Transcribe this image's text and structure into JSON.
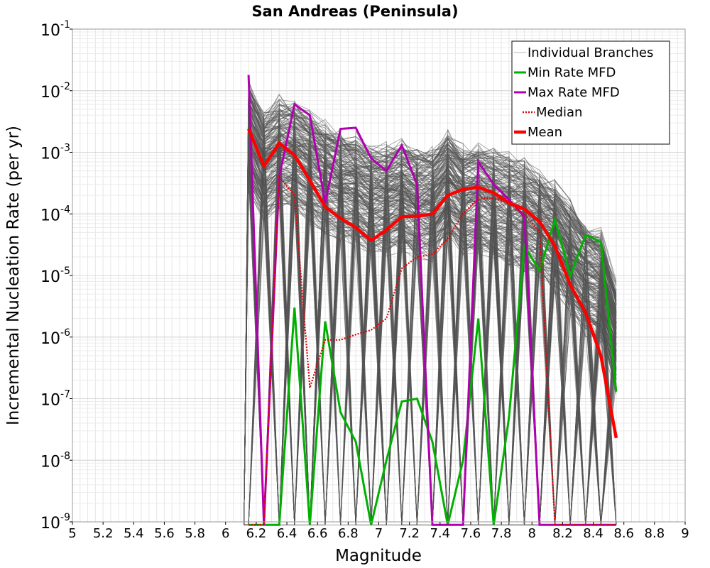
{
  "chart_data": {
    "type": "line",
    "title": "San Andreas (Peninsula)",
    "xlabel": "Magnitude",
    "ylabel": "Incremental Nucleation Rate (per yr)",
    "x_scale": "linear",
    "y_scale": "log",
    "xlim": [
      5,
      9
    ],
    "ylim": [
      1e-09,
      0.1
    ],
    "x_ticks": [
      5,
      5.2,
      5.4,
      5.6,
      5.8,
      6,
      6.2,
      6.4,
      6.6,
      6.8,
      7,
      7.2,
      7.4,
      7.6,
      7.8,
      8,
      8.2,
      8.4,
      8.6,
      8.8,
      9
    ],
    "x_tick_labels": [
      "5",
      "5.2",
      "5.4",
      "5.6",
      "5.8",
      "6",
      "6.2",
      "6.4",
      "6.6",
      "6.8",
      "7",
      "7.2",
      "7.4",
      "7.6",
      "7.8",
      "8",
      "8.2",
      "8.4",
      "8.6",
      "8.8",
      "9"
    ],
    "y_tick_labels": [
      {
        "base": "10",
        "exp": "-9"
      },
      {
        "base": "10",
        "exp": "-8"
      },
      {
        "base": "10",
        "exp": "-7"
      },
      {
        "base": "10",
        "exp": "-6"
      },
      {
        "base": "10",
        "exp": "-5"
      },
      {
        "base": "10",
        "exp": "-4"
      },
      {
        "base": "10",
        "exp": "-3"
      },
      {
        "base": "10",
        "exp": "-2"
      },
      {
        "base": "10",
        "exp": "-1"
      }
    ],
    "legend": {
      "position": "top-right",
      "entries": [
        {
          "label": "Individual Branches",
          "color": "#b4b4b4",
          "style": "thin-solid"
        },
        {
          "label": "Min Rate MFD",
          "color": "#00b000",
          "style": "solid"
        },
        {
          "label": "Max Rate MFD",
          "color": "#b000b0",
          "style": "solid"
        },
        {
          "label": "Median",
          "color": "#e00000",
          "style": "dotted"
        },
        {
          "label": "Mean",
          "color": "#ff0000",
          "style": "thick-solid"
        }
      ]
    },
    "branch_envelope": {
      "color": "#555555",
      "x": [
        6.15,
        6.25,
        6.35,
        6.45,
        6.55,
        6.65,
        6.75,
        6.85,
        6.95,
        7.05,
        7.15,
        7.25,
        7.35,
        7.45,
        7.55,
        7.65,
        7.75,
        7.85,
        7.95,
        8.05,
        8.15,
        8.25,
        8.35,
        8.45,
        8.55
      ],
      "upper": [
        0.02,
        0.006,
        0.01,
        0.009,
        0.006,
        0.004,
        0.003,
        0.0025,
        0.0018,
        0.0018,
        0.002,
        0.0015,
        0.0015,
        0.003,
        0.0016,
        0.0018,
        0.0014,
        0.0012,
        0.001,
        0.0007,
        0.00045,
        0.0002,
        9e-05,
        7e-05,
        1e-05
      ]
    },
    "series": [
      {
        "name": "Min Rate MFD",
        "color": "#00b000",
        "x": [
          6.15,
          6.25,
          6.35,
          6.45,
          6.55,
          6.65,
          6.75,
          6.85,
          6.95,
          7.05,
          7.15,
          7.25,
          7.35,
          7.45,
          7.55,
          7.65,
          7.75,
          7.85,
          7.95,
          8.05,
          8.15,
          8.25,
          8.35,
          8.45,
          8.55
        ],
        "values": [
          null,
          null,
          null,
          3e-06,
          null,
          1.8e-06,
          6e-08,
          2e-08,
          null,
          1e-08,
          9e-08,
          1e-07,
          2e-08,
          null,
          1e-08,
          2e-06,
          null,
          5e-08,
          3e-05,
          1.2e-05,
          8e-05,
          1e-05,
          4.5e-05,
          3.5e-05,
          1.3e-07
        ]
      },
      {
        "name": "Max Rate MFD",
        "color": "#b000b0",
        "x": [
          6.15,
          6.25,
          6.35,
          6.45,
          6.55,
          6.65,
          6.75,
          6.85,
          6.95,
          7.05,
          7.15,
          7.25,
          7.35,
          7.45,
          7.55,
          7.65,
          7.75,
          7.85,
          7.95,
          8.05,
          8.15,
          8.25,
          8.35,
          8.45,
          8.55
        ],
        "values": [
          0.018,
          null,
          0.0004,
          0.006,
          0.004,
          0.00015,
          0.0024,
          0.0025,
          0.0008,
          0.0005,
          0.0013,
          0.0003,
          null,
          null,
          null,
          0.0007,
          0.0003,
          0.00017,
          9e-05,
          null,
          null,
          null,
          null,
          null,
          null
        ]
      },
      {
        "name": "Median",
        "color": "#e00000",
        "x": [
          6.15,
          6.25,
          6.35,
          6.45,
          6.55,
          6.65,
          6.75,
          6.85,
          6.95,
          7.05,
          7.15,
          7.25,
          7.35,
          7.45,
          7.55,
          7.65,
          7.75,
          7.85,
          7.95,
          8.05,
          8.15,
          8.25,
          8.35,
          8.45,
          8.55
        ],
        "values": [
          null,
          null,
          0.0004,
          0.0002,
          1.5e-07,
          9e-07,
          9e-07,
          1.1e-06,
          1.3e-06,
          2e-06,
          1.3e-05,
          2e-05,
          2.2e-05,
          4e-05,
          0.0001,
          0.00018,
          0.00018,
          0.00015,
          0.0001,
          5e-05,
          null,
          null,
          null,
          null,
          null
        ]
      },
      {
        "name": "Mean",
        "color": "#ff0000",
        "x": [
          6.15,
          6.25,
          6.35,
          6.45,
          6.55,
          6.65,
          6.75,
          6.85,
          6.95,
          7.05,
          7.15,
          7.25,
          7.35,
          7.45,
          7.55,
          7.65,
          7.75,
          7.85,
          7.95,
          8.05,
          8.15,
          8.25,
          8.35,
          8.45,
          8.55
        ],
        "values": [
          0.0024,
          0.0006,
          0.0014,
          0.0009,
          0.00035,
          0.00013,
          8.5e-05,
          6e-05,
          3.7e-05,
          5.5e-05,
          9e-05,
          9.2e-05,
          0.0001,
          0.0002,
          0.00025,
          0.00027,
          0.00022,
          0.00015,
          0.00012,
          7.5e-05,
          3e-05,
          7e-06,
          2.5e-06,
          5e-07,
          2.3e-08
        ]
      }
    ]
  }
}
